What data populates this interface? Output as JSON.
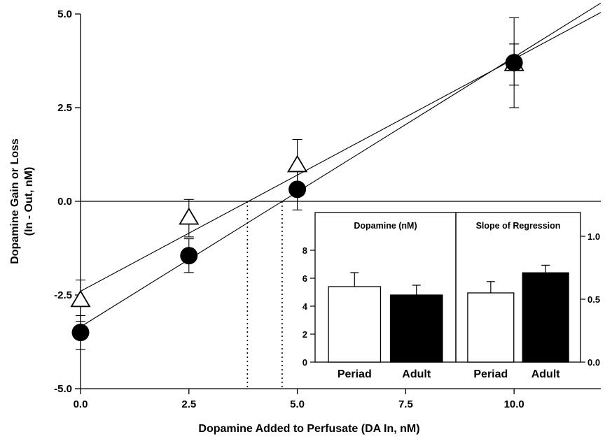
{
  "chart_data": [
    {
      "type": "scatter",
      "xlabel": "Dopamine Added to Perfusate (DA In, nM)",
      "ylabel_lines": [
        "Dopamine Gain or Loss",
        "(In - Out, nM)"
      ],
      "xlim": [
        0,
        12
      ],
      "ylim": [
        -5,
        5
      ],
      "xticks": [
        0,
        2.5,
        5,
        7.5,
        10
      ],
      "xtick_labels": [
        "0.0",
        "2.5",
        "5.0",
        "7.5",
        "10.0"
      ],
      "yticks": [
        -5,
        -2.5,
        0,
        2.5,
        5
      ],
      "ytick_labels": [
        "-5.0",
        "-2.5",
        "0.0",
        "2.5",
        "5.0"
      ],
      "zero_line": true,
      "series": [
        {
          "marker": "open-triangle",
          "x": [
            0,
            2.5,
            5,
            10
          ],
          "y": [
            -2.65,
            -0.45,
            0.95,
            3.65
          ],
          "err": [
            0.55,
            0.5,
            0.7,
            0.55
          ],
          "fit": {
            "slope": 0.62,
            "intercept": -2.4
          },
          "x_intercept": 3.85
        },
        {
          "marker": "filled-circle",
          "x": [
            0,
            2.5,
            5,
            10
          ],
          "y": [
            -3.5,
            -1.45,
            0.32,
            3.7
          ],
          "err": [
            0.45,
            0.45,
            0.55,
            1.2
          ],
          "fit": {
            "slope": 0.72,
            "intercept": -3.35
          },
          "x_intercept": 4.65
        }
      ]
    },
    {
      "type": "bar",
      "title": "Dopamine (nM)",
      "categories": [
        "Periad",
        "Adult"
      ],
      "values": [
        5.4,
        4.8
      ],
      "errors": [
        1.0,
        0.7
      ],
      "fills": [
        "#ffffff",
        "#000000"
      ],
      "ylim": [
        0,
        9
      ],
      "yticks": [
        0,
        2,
        4,
        6,
        8
      ],
      "ytick_labels": [
        "0",
        "2",
        "4",
        "6",
        "8"
      ]
    },
    {
      "type": "bar",
      "title": "Slope of Regression",
      "categories": [
        "Periad",
        "Adult"
      ],
      "values": [
        0.55,
        0.71
      ],
      "errors": [
        0.09,
        0.06
      ],
      "fills": [
        "#ffffff",
        "#000000"
      ],
      "ylim": [
        0,
        1.0
      ],
      "yticks": [
        0,
        0.5,
        1.0
      ],
      "ytick_labels": [
        "0.0",
        "0.5",
        "1.0"
      ]
    }
  ]
}
